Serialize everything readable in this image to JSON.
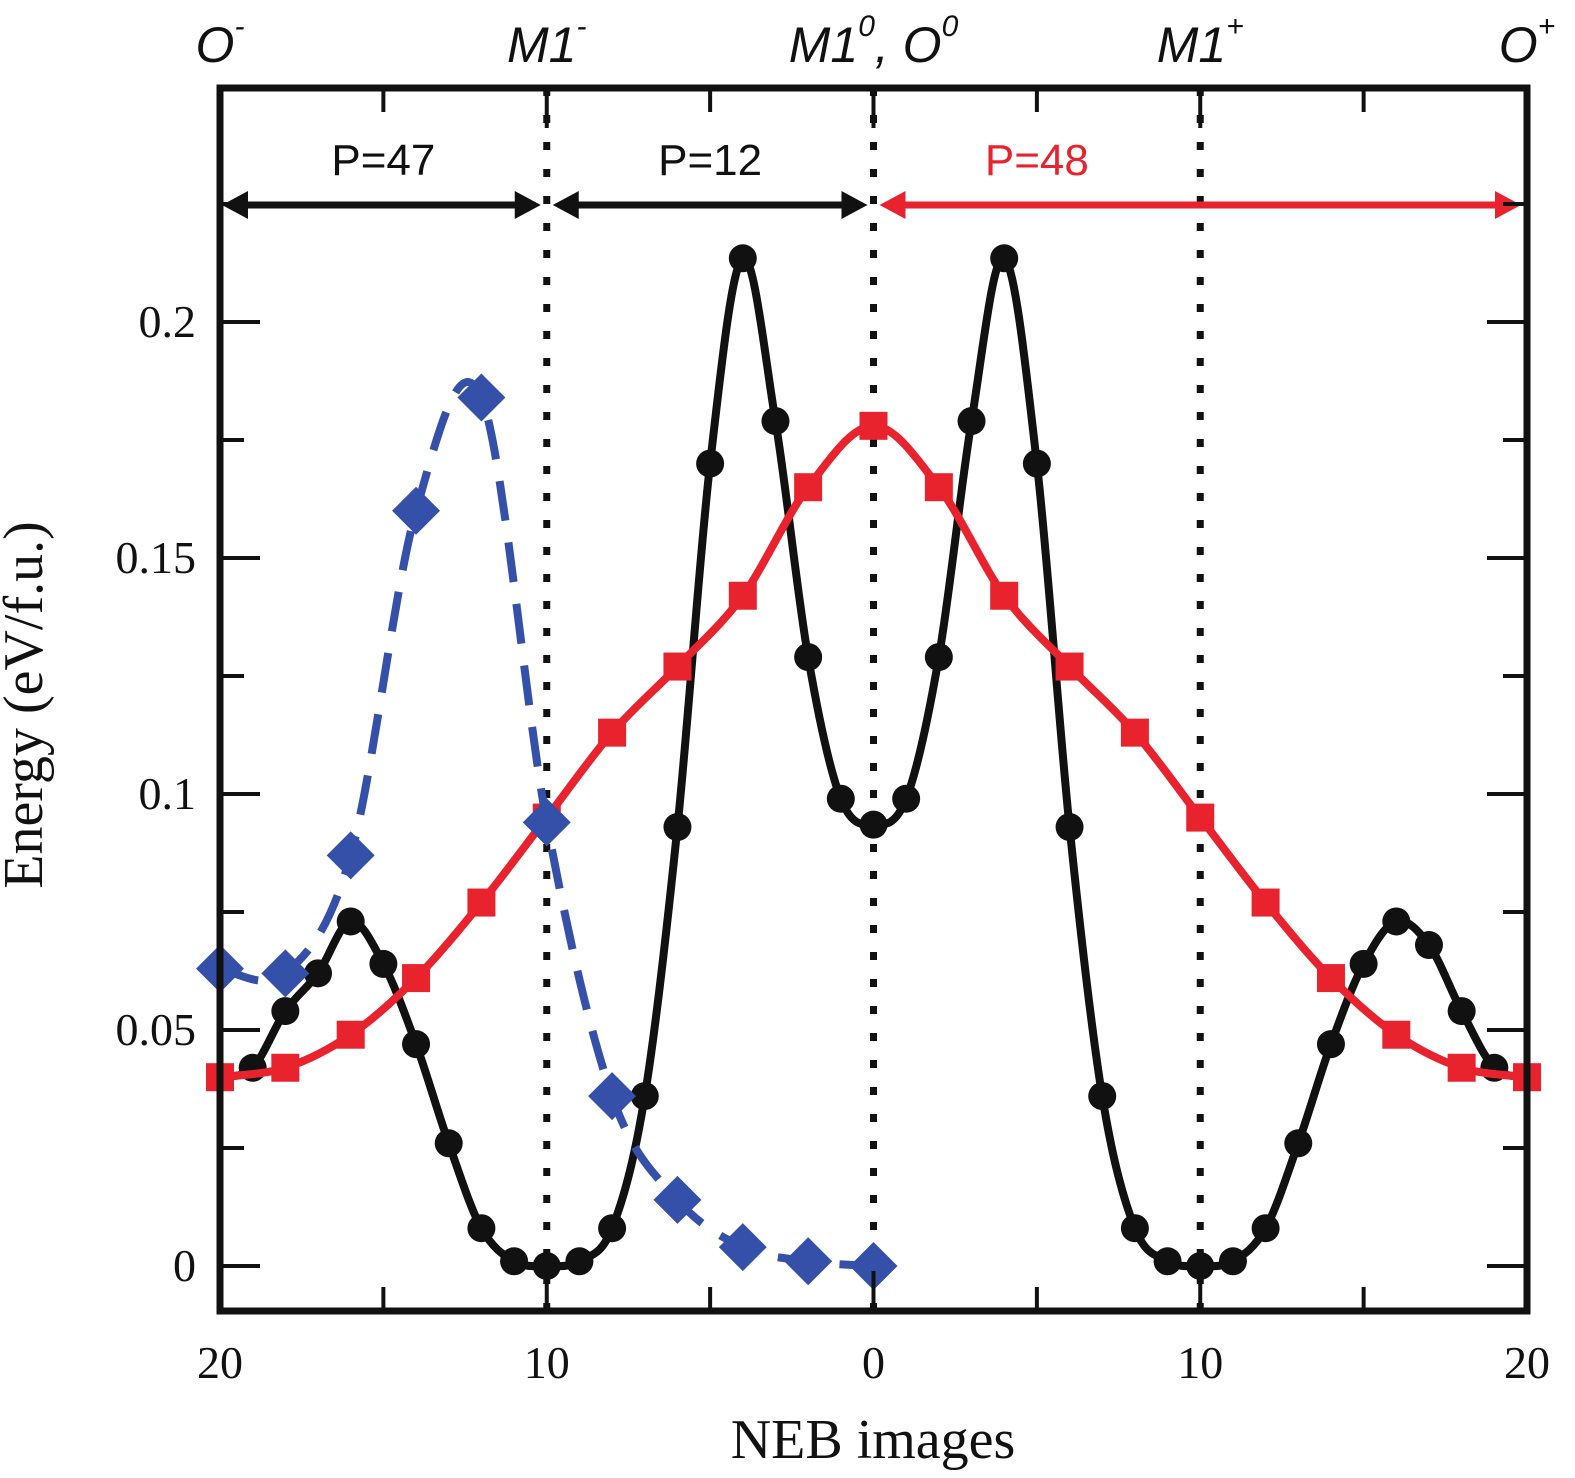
{
  "chart_data": {
    "type": "line",
    "title": "",
    "xlabel": "NEB images",
    "ylabel": "Energy (eV/f.u.)",
    "x_range": [
      -20,
      20
    ],
    "ylim": [
      -0.01,
      0.25
    ],
    "x_ticks": [
      {
        "pos": -20,
        "label": "20"
      },
      {
        "pos": -10,
        "label": "10"
      },
      {
        "pos": 0,
        "label": "0"
      },
      {
        "pos": 10,
        "label": "10"
      },
      {
        "pos": 20,
        "label": "20"
      }
    ],
    "x_minor_ticks": [
      -15,
      -5,
      5,
      15
    ],
    "y_ticks": [
      {
        "value": 0,
        "label": "0"
      },
      {
        "value": 0.05,
        "label": "0.05"
      },
      {
        "value": 0.1,
        "label": "0.1"
      },
      {
        "value": 0.15,
        "label": "0.15"
      },
      {
        "value": 0.2,
        "label": "0.2"
      }
    ],
    "y_minor_ticks": [
      0.025,
      0.075,
      0.125,
      0.175,
      0.225
    ],
    "grid": false,
    "top_labels": [
      {
        "pos": -20,
        "base": "O",
        "sup": "-"
      },
      {
        "pos": -10,
        "base": "M1",
        "sup": "-"
      },
      {
        "pos": 0,
        "base": "M1",
        "sup": "0",
        "extra_base": ", O",
        "extra_sup": "0"
      },
      {
        "pos": 10,
        "base": "M1",
        "sup": "+"
      },
      {
        "pos": 20,
        "base": "O",
        "sup": "+"
      }
    ],
    "vertical_markers": [
      -10,
      0,
      10
    ],
    "path_ranges": [
      {
        "label": "P=47",
        "from": -20,
        "to": -10,
        "color": "#111111"
      },
      {
        "label": "P=12",
        "from": -10,
        "to": 0,
        "color": "#111111"
      },
      {
        "label": "P=48",
        "from": 0,
        "to": 20,
        "color": "#e8232e"
      }
    ],
    "series": [
      {
        "name": "black-circles",
        "color": "#111111",
        "marker": "circle",
        "line": "solid",
        "x": [
          -20,
          -19,
          -18,
          -17,
          -16,
          -15,
          -14,
          -13,
          -12,
          -11,
          -10,
          -9,
          -8,
          -7,
          -6,
          -5,
          -4,
          -3,
          -2,
          -1,
          0,
          1,
          2,
          3,
          4,
          5,
          6,
          7,
          8,
          9,
          10,
          11,
          12,
          13,
          14,
          15,
          16,
          17,
          18,
          19,
          20
        ],
        "values": [
          0.04,
          0.042,
          0.054,
          0.062,
          0.073,
          0.064,
          0.047,
          0.026,
          0.008,
          0.001,
          0.0,
          0.001,
          0.008,
          0.036,
          0.093,
          0.17,
          0.2135,
          0.179,
          0.129,
          0.099,
          0.0935,
          0.099,
          0.129,
          0.179,
          0.2135,
          0.17,
          0.093,
          0.036,
          0.008,
          0.001,
          0.0,
          0.001,
          0.008,
          0.026,
          0.047,
          0.064,
          0.073,
          0.068,
          0.054,
          0.042,
          0.04
        ]
      },
      {
        "name": "red-squares",
        "color": "#e8232e",
        "marker": "square",
        "line": "solid",
        "x": [
          -20,
          -18,
          -16,
          -14,
          -12,
          -10,
          -8,
          -6,
          -4,
          -2,
          0,
          2,
          4,
          6,
          8,
          10,
          12,
          14,
          16,
          18,
          20
        ],
        "values": [
          0.04,
          0.042,
          0.049,
          0.061,
          0.077,
          0.095,
          0.113,
          0.127,
          0.142,
          0.165,
          0.178,
          0.165,
          0.142,
          0.127,
          0.113,
          0.095,
          0.077,
          0.061,
          0.049,
          0.042,
          0.04
        ]
      },
      {
        "name": "blue-diamonds",
        "color": "#3450a8",
        "marker": "diamond",
        "line": "dashed",
        "x": [
          -20,
          -18,
          -16,
          -14,
          -12,
          -10,
          -8,
          -6,
          -4,
          -2,
          0
        ],
        "values": [
          0.063,
          0.062,
          0.087,
          0.16,
          0.184,
          0.094,
          0.036,
          0.014,
          0.004,
          0.001,
          0.0
        ]
      }
    ]
  }
}
